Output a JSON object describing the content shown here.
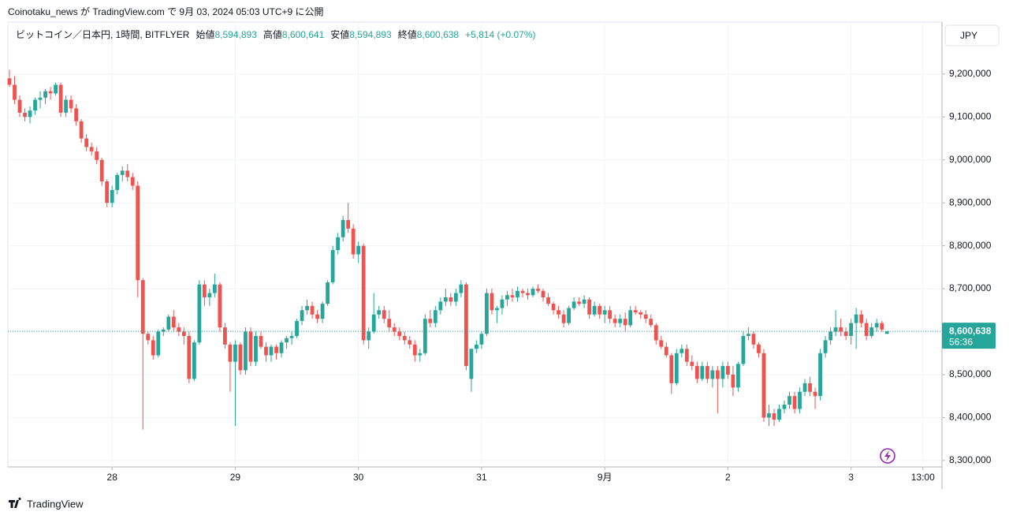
{
  "chart_data": {
    "type": "candlestick",
    "attribution": "Coinotaku_news が TradingView.com で 9月 03, 2024 05:03 UTC+9 に公開",
    "symbol": "ビットコイン／日本円, 1時間, BITFLYER",
    "legend": {
      "open_label": "始値",
      "open": "8,594,893",
      "high_label": "高値",
      "high": "8,600,641",
      "low_label": "安値",
      "low": "8,594,893",
      "close_label": "終値",
      "close": "8,600,638",
      "change": "+5,814 (+0.07%)"
    },
    "currency": "JPY",
    "brand": "TradingView",
    "price_marker": {
      "value": 8600638,
      "label": "8,600,638",
      "countdown": "56:36"
    },
    "up_color": "#26a69a",
    "down_color": "#ef5350",
    "grid": true,
    "xlim": [
      0,
      184
    ],
    "xticks": [
      {
        "value": 20,
        "label": "28"
      },
      {
        "value": 44,
        "label": "29"
      },
      {
        "value": 68,
        "label": "30"
      },
      {
        "value": 92,
        "label": "31"
      },
      {
        "value": 116,
        "label": "9月"
      },
      {
        "value": 140,
        "label": "2"
      },
      {
        "value": 164,
        "label": "3"
      },
      {
        "value": 178,
        "label": "13:00"
      }
    ],
    "ylim": [
      8285000,
      9321000
    ],
    "yticks": [
      {
        "value": 8300000,
        "label": "8,300,000"
      },
      {
        "value": 8400000,
        "label": "8,400,000"
      },
      {
        "value": 8500000,
        "label": "8,500,000"
      },
      {
        "value": 8600000,
        "label": "8,600,000"
      },
      {
        "value": 8700000,
        "label": "8,700,000"
      },
      {
        "value": 8800000,
        "label": "8,800,000"
      },
      {
        "value": 8900000,
        "label": "8,900,000"
      },
      {
        "value": 9000000,
        "label": "9,000,000"
      },
      {
        "value": 9100000,
        "label": "9,100,000"
      },
      {
        "value": 9200000,
        "label": "9,200,000"
      }
    ],
    "candles": [
      [
        9190000,
        9210000,
        9170000,
        9175000
      ],
      [
        9175000,
        9195000,
        9130000,
        9140000
      ],
      [
        9140000,
        9150000,
        9100000,
        9110000
      ],
      [
        9110000,
        9120000,
        9090000,
        9100000
      ],
      [
        9100000,
        9125000,
        9085000,
        9115000
      ],
      [
        9115000,
        9145000,
        9105000,
        9140000
      ],
      [
        9140000,
        9160000,
        9120000,
        9145000
      ],
      [
        9145000,
        9165000,
        9130000,
        9160000
      ],
      [
        9160000,
        9170000,
        9140000,
        9155000
      ],
      [
        9155000,
        9180000,
        9150000,
        9175000
      ],
      [
        9175000,
        9180000,
        9100000,
        9110000
      ],
      [
        9110000,
        9150000,
        9100000,
        9140000
      ],
      [
        9140000,
        9150000,
        9110000,
        9120000
      ],
      [
        9120000,
        9130000,
        9080000,
        9090000
      ],
      [
        9090000,
        9095000,
        9040000,
        9050000
      ],
      [
        9050000,
        9060000,
        9020000,
        9030000
      ],
      [
        9030000,
        9040000,
        9010000,
        9020000
      ],
      [
        9020000,
        9030000,
        8990000,
        9000000
      ],
      [
        9000000,
        9005000,
        8940000,
        8950000
      ],
      [
        8950000,
        8955000,
        8890000,
        8900000
      ],
      [
        8900000,
        8940000,
        8890000,
        8930000
      ],
      [
        8930000,
        8970000,
        8920000,
        8965000
      ],
      [
        8965000,
        8985000,
        8950000,
        8975000
      ],
      [
        8975000,
        8990000,
        8950000,
        8960000
      ],
      [
        8960000,
        8970000,
        8930000,
        8940000
      ],
      [
        8940000,
        8950000,
        8680000,
        8720000
      ],
      [
        8720000,
        8725000,
        8372000,
        8595000
      ],
      [
        8595000,
        8600000,
        8570000,
        8580000
      ],
      [
        8580000,
        8590000,
        8535000,
        8545000
      ],
      [
        8545000,
        8605000,
        8540000,
        8600000
      ],
      [
        8600000,
        8610000,
        8590000,
        8605000
      ],
      [
        8605000,
        8640000,
        8600000,
        8635000
      ],
      [
        8635000,
        8650000,
        8600000,
        8610000
      ],
      [
        8610000,
        8620000,
        8590000,
        8600000
      ],
      [
        8600000,
        8610000,
        8570000,
        8590000
      ],
      [
        8590000,
        8600000,
        8480000,
        8490000
      ],
      [
        8490000,
        8580000,
        8485000,
        8575000
      ],
      [
        8575000,
        8720000,
        8570000,
        8710000
      ],
      [
        8710000,
        8720000,
        8660000,
        8680000
      ],
      [
        8680000,
        8700000,
        8660000,
        8690000
      ],
      [
        8690000,
        8735000,
        8680000,
        8710000
      ],
      [
        8710000,
        8715000,
        8600000,
        8610000
      ],
      [
        8610000,
        8620000,
        8560000,
        8570000
      ],
      [
        8570000,
        8575000,
        8460000,
        8530000
      ],
      [
        8530000,
        8580000,
        8380000,
        8570000
      ],
      [
        8570000,
        8575000,
        8500000,
        8510000
      ],
      [
        8510000,
        8610000,
        8500000,
        8600000
      ],
      [
        8600000,
        8610000,
        8520000,
        8530000
      ],
      [
        8530000,
        8600000,
        8520000,
        8590000
      ],
      [
        8590000,
        8600000,
        8560000,
        8565000
      ],
      [
        8565000,
        8575000,
        8530000,
        8545000
      ],
      [
        8545000,
        8570000,
        8530000,
        8565000
      ],
      [
        8565000,
        8570000,
        8535000,
        8550000
      ],
      [
        8550000,
        8580000,
        8540000,
        8575000
      ],
      [
        8575000,
        8590000,
        8560000,
        8585000
      ],
      [
        8585000,
        8600000,
        8570000,
        8590000
      ],
      [
        8590000,
        8630000,
        8585000,
        8625000
      ],
      [
        8625000,
        8660000,
        8615000,
        8650000
      ],
      [
        8650000,
        8675000,
        8640000,
        8660000
      ],
      [
        8660000,
        8670000,
        8630000,
        8640000
      ],
      [
        8640000,
        8650000,
        8620000,
        8630000
      ],
      [
        8630000,
        8670000,
        8620000,
        8665000
      ],
      [
        8665000,
        8720000,
        8660000,
        8715000
      ],
      [
        8715000,
        8800000,
        8710000,
        8790000
      ],
      [
        8790000,
        8830000,
        8780000,
        8820000
      ],
      [
        8820000,
        8870000,
        8810000,
        8860000
      ],
      [
        8860000,
        8900000,
        8830000,
        8840000
      ],
      [
        8840000,
        8850000,
        8770000,
        8780000
      ],
      [
        8780000,
        8810000,
        8760000,
        8800000
      ],
      [
        8800000,
        8805000,
        8570000,
        8580000
      ],
      [
        8580000,
        8610000,
        8560000,
        8600000
      ],
      [
        8600000,
        8690000,
        8595000,
        8640000
      ],
      [
        8640000,
        8660000,
        8630000,
        8650000
      ],
      [
        8650000,
        8660000,
        8620000,
        8630000
      ],
      [
        8630000,
        8650000,
        8600000,
        8610000
      ],
      [
        8610000,
        8620000,
        8590000,
        8600000
      ],
      [
        8600000,
        8610000,
        8580000,
        8590000
      ],
      [
        8590000,
        8600000,
        8570000,
        8580000
      ],
      [
        8580000,
        8590000,
        8560000,
        8570000
      ],
      [
        8570000,
        8580000,
        8530000,
        8545000
      ],
      [
        8545000,
        8560000,
        8530000,
        8550000
      ],
      [
        8550000,
        8640000,
        8545000,
        8630000
      ],
      [
        8630000,
        8650000,
        8610000,
        8620000
      ],
      [
        8620000,
        8660000,
        8610000,
        8650000
      ],
      [
        8650000,
        8680000,
        8640000,
        8670000
      ],
      [
        8670000,
        8700000,
        8660000,
        8680000
      ],
      [
        8680000,
        8690000,
        8660000,
        8670000
      ],
      [
        8670000,
        8700000,
        8660000,
        8690000
      ],
      [
        8690000,
        8720000,
        8680000,
        8710000
      ],
      [
        8710000,
        8715000,
        8510000,
        8520000
      ],
      [
        8490000,
        8560000,
        8460000,
        8560000
      ],
      [
        8560000,
        8580000,
        8550000,
        8570000
      ],
      [
        8570000,
        8600000,
        8560000,
        8595000
      ],
      [
        8595000,
        8700000,
        8590000,
        8690000
      ],
      [
        8690000,
        8700000,
        8640000,
        8650000
      ],
      [
        8650000,
        8660000,
        8620000,
        8655000
      ],
      [
        8655000,
        8685000,
        8640000,
        8675000
      ],
      [
        8675000,
        8695000,
        8660000,
        8685000
      ],
      [
        8685000,
        8700000,
        8670000,
        8680000
      ],
      [
        8680000,
        8705000,
        8670000,
        8695000
      ],
      [
        8695000,
        8700000,
        8680000,
        8690000
      ],
      [
        8690000,
        8700000,
        8675000,
        8685000
      ],
      [
        8685000,
        8705000,
        8680000,
        8700000
      ],
      [
        8700000,
        8710000,
        8690000,
        8695000
      ],
      [
        8695000,
        8700000,
        8670000,
        8680000
      ],
      [
        8680000,
        8690000,
        8660000,
        8665000
      ],
      [
        8665000,
        8670000,
        8640000,
        8650000
      ],
      [
        8650000,
        8660000,
        8630000,
        8640000
      ],
      [
        8640000,
        8650000,
        8610000,
        8620000
      ],
      [
        8620000,
        8660000,
        8615000,
        8655000
      ],
      [
        8655000,
        8680000,
        8650000,
        8670000
      ],
      [
        8670000,
        8680000,
        8660000,
        8665000
      ],
      [
        8665000,
        8685000,
        8655000,
        8675000
      ],
      [
        8675000,
        8680000,
        8630000,
        8640000
      ],
      [
        8640000,
        8670000,
        8635000,
        8660000
      ],
      [
        8660000,
        8665000,
        8630000,
        8640000
      ],
      [
        8640000,
        8660000,
        8620000,
        8650000
      ],
      [
        8650000,
        8660000,
        8620000,
        8630000
      ],
      [
        8630000,
        8640000,
        8610000,
        8620000
      ],
      [
        8620000,
        8640000,
        8610000,
        8630000
      ],
      [
        8630000,
        8645000,
        8600000,
        8615000
      ],
      [
        8615000,
        8660000,
        8610000,
        8650000
      ],
      [
        8650000,
        8660000,
        8640000,
        8645000
      ],
      [
        8645000,
        8650000,
        8630000,
        8640000
      ],
      [
        8640000,
        8650000,
        8620000,
        8630000
      ],
      [
        8630000,
        8640000,
        8610000,
        8615000
      ],
      [
        8615000,
        8620000,
        8570000,
        8580000
      ],
      [
        8580000,
        8590000,
        8560000,
        8565000
      ],
      [
        8565000,
        8575000,
        8540000,
        8545000
      ],
      [
        8545000,
        8550000,
        8455000,
        8480000
      ],
      [
        8480000,
        8560000,
        8475000,
        8550000
      ],
      [
        8550000,
        8570000,
        8540000,
        8560000
      ],
      [
        8560000,
        8570000,
        8520000,
        8530000
      ],
      [
        8530000,
        8545000,
        8510000,
        8520000
      ],
      [
        8520000,
        8530000,
        8480000,
        8490000
      ],
      [
        8490000,
        8530000,
        8485000,
        8520000
      ],
      [
        8520000,
        8530000,
        8480000,
        8490000
      ],
      [
        8490000,
        8520000,
        8470000,
        8510000
      ],
      [
        8510000,
        8520000,
        8410000,
        8490000
      ],
      [
        8490000,
        8530000,
        8470000,
        8520000
      ],
      [
        8520000,
        8530000,
        8490000,
        8500000
      ],
      [
        8500000,
        8520000,
        8450000,
        8470000
      ],
      [
        8470000,
        8530000,
        8460000,
        8525000
      ],
      [
        8525000,
        8600000,
        8520000,
        8590000
      ],
      [
        8590000,
        8610000,
        8580000,
        8595000
      ],
      [
        8595000,
        8600000,
        8560000,
        8570000
      ],
      [
        8570000,
        8575000,
        8540000,
        8550000
      ],
      [
        8550000,
        8560000,
        8390000,
        8400000
      ],
      [
        8400000,
        8430000,
        8380000,
        8410000
      ],
      [
        8410000,
        8420000,
        8380000,
        8395000
      ],
      [
        8395000,
        8430000,
        8390000,
        8420000
      ],
      [
        8420000,
        8440000,
        8410000,
        8430000
      ],
      [
        8430000,
        8460000,
        8420000,
        8450000
      ],
      [
        8450000,
        8460000,
        8410000,
        8420000
      ],
      [
        8420000,
        8470000,
        8410000,
        8460000
      ],
      [
        8460000,
        8490000,
        8450000,
        8480000
      ],
      [
        8480000,
        8495000,
        8450000,
        8460000
      ],
      [
        8460000,
        8470000,
        8420000,
        8450000
      ],
      [
        8450000,
        8560000,
        8440000,
        8550000
      ],
      [
        8550000,
        8590000,
        8540000,
        8580000
      ],
      [
        8580000,
        8610000,
        8570000,
        8600000
      ],
      [
        8600000,
        8650000,
        8590000,
        8610000
      ],
      [
        8610000,
        8630000,
        8590000,
        8600000
      ],
      [
        8600000,
        8610000,
        8580000,
        8590000
      ],
      [
        8590000,
        8630000,
        8570000,
        8620000
      ],
      [
        8620000,
        8655000,
        8560000,
        8640000
      ],
      [
        8640000,
        8650000,
        8610000,
        8620000
      ],
      [
        8620000,
        8630000,
        8580000,
        8590000
      ],
      [
        8590000,
        8620000,
        8585000,
        8610000
      ],
      [
        8610000,
        8630000,
        8600000,
        8620000
      ],
      [
        8620000,
        8625000,
        8600000,
        8605000
      ],
      [
        8594893,
        8600641,
        8594893,
        8600638
      ]
    ]
  }
}
